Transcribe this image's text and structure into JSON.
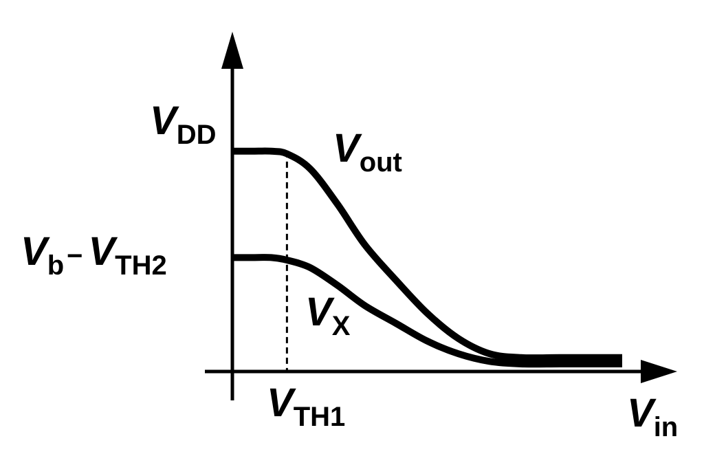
{
  "chart_data": {
    "type": "line",
    "title": "",
    "colors": {
      "ink": "#000000",
      "background": "#ffffff"
    },
    "axes": {
      "x": {
        "label_main": "V",
        "label_sub": "in",
        "arrow": true
      },
      "y": {
        "label_main": "",
        "arrow": true
      },
      "grid": false,
      "ticks": false
    },
    "xlim": [
      0,
      1
    ],
    "ylim": [
      0,
      1
    ],
    "y_levels": [
      {
        "label_main": "V",
        "label_sub": "DD",
        "value": 0.87
      },
      {
        "label_main": "V",
        "label_sub": "b",
        "separator": "−",
        "label_main2": "V",
        "label_sub2": "TH2",
        "value": 0.45
      }
    ],
    "x_markers": [
      {
        "label_main": "V",
        "label_sub": "TH1",
        "value": 0.14,
        "style": "dashed",
        "top": 0.87
      }
    ],
    "series": [
      {
        "name_main": "V",
        "name_sub": "out",
        "x": [
          0.0,
          0.05,
          0.1,
          0.14,
          0.2,
          0.27,
          0.34,
          0.42,
          0.5,
          0.58,
          0.66,
          0.74,
          0.84,
          0.94,
          1.0
        ],
        "y": [
          0.87,
          0.87,
          0.87,
          0.86,
          0.8,
          0.66,
          0.5,
          0.36,
          0.23,
          0.13,
          0.07,
          0.055,
          0.055,
          0.055,
          0.055
        ]
      },
      {
        "name_main": "V",
        "name_sub": "X",
        "x": [
          0.0,
          0.05,
          0.1,
          0.14,
          0.2,
          0.27,
          0.34,
          0.42,
          0.5,
          0.58,
          0.66,
          0.74,
          0.84,
          0.94,
          1.0
        ],
        "y": [
          0.45,
          0.45,
          0.45,
          0.44,
          0.41,
          0.34,
          0.26,
          0.19,
          0.12,
          0.07,
          0.04,
          0.03,
          0.03,
          0.03,
          0.03
        ]
      }
    ]
  }
}
